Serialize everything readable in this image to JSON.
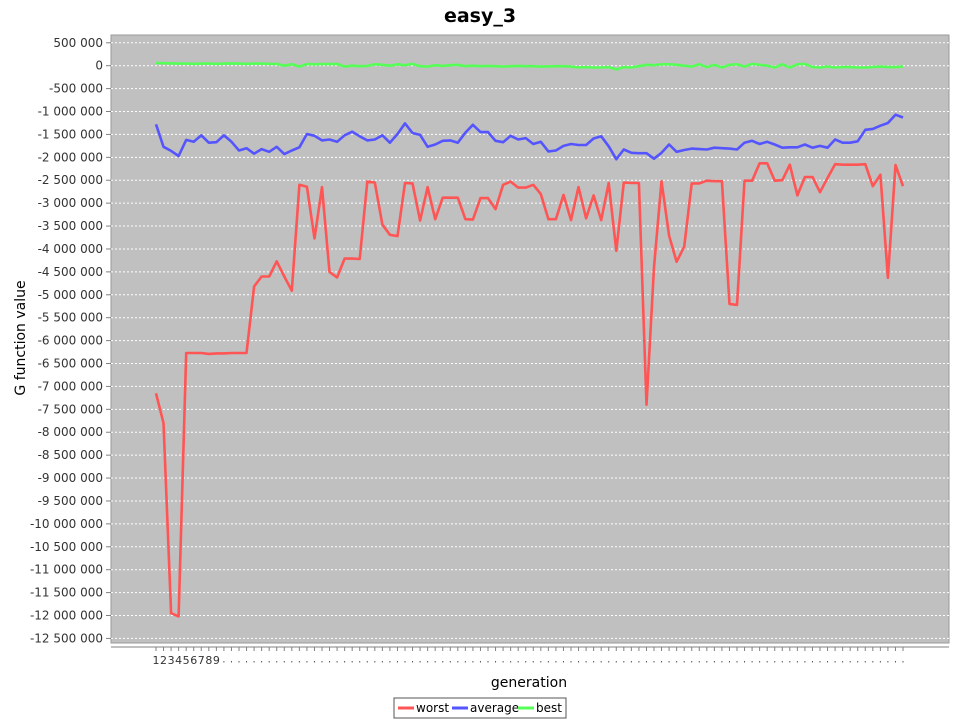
{
  "chart_data": {
    "type": "line",
    "title": "easy_3",
    "xlabel": "generation",
    "ylabel": "G function value",
    "ylim": [
      -12600000,
      670000
    ],
    "yticks": [
      500000,
      0,
      -500000,
      -1000000,
      -1500000,
      -2000000,
      -2500000,
      -3000000,
      -3500000,
      -4000000,
      -4500000,
      -5000000,
      -5500000,
      -6000000,
      -6500000,
      -7000000,
      -7500000,
      -8000000,
      -8500000,
      -9000000,
      -9500000,
      -10000000,
      -10500000,
      -11000000,
      -11500000,
      -12000000,
      -12500000
    ],
    "ytick_labels": [
      "500 000",
      "0",
      "-500 000",
      "-1 000 000",
      "-1 500 000",
      "-2 000 000",
      "-2 500 000",
      "-3 000 000",
      "-3 500 000",
      "-4 000 000",
      "-4 500 000",
      "-5 000 000",
      "-5 500 000",
      "-6 000 000",
      "-6 500 000",
      "-7 000 000",
      "-7 500 000",
      "-8 000 000",
      "-8 500 000",
      "-9 000 000",
      "-9 500 000",
      "-10 000 000",
      "-10 500 000",
      "-11 000 000",
      "-11 500 000",
      "-12 000 000",
      "-12 500 000"
    ],
    "x_count": 100,
    "x_tick_labels_visible": [
      "1",
      "2",
      "3",
      "4",
      "5",
      "6",
      "7",
      "8",
      "9"
    ],
    "grid": true,
    "legend_position": "bottom-center",
    "series": [
      {
        "name": "worst",
        "color": "#ff5555",
        "values": [
          -7150000,
          -7800000,
          -11950000,
          -12020000,
          -6270000,
          -6270000,
          -6270000,
          -6290000,
          -6280000,
          -6280000,
          -6270000,
          -6270000,
          -6270000,
          -4820000,
          -4600000,
          -4600000,
          -4270000,
          -4600000,
          -4910000,
          -2600000,
          -2640000,
          -3770000,
          -2650000,
          -4500000,
          -4620000,
          -4210000,
          -4210000,
          -4220000,
          -2530000,
          -2550000,
          -3470000,
          -3690000,
          -3720000,
          -2560000,
          -2570000,
          -3380000,
          -2650000,
          -3350000,
          -2880000,
          -2880000,
          -2880000,
          -3350000,
          -3360000,
          -2890000,
          -2890000,
          -3130000,
          -2600000,
          -2530000,
          -2660000,
          -2660000,
          -2600000,
          -2800000,
          -3350000,
          -3350000,
          -2820000,
          -3370000,
          -2650000,
          -3330000,
          -2830000,
          -3370000,
          -2560000,
          -4040000,
          -2550000,
          -2560000,
          -2560000,
          -7400000,
          -4400000,
          -2520000,
          -3710000,
          -4280000,
          -3950000,
          -2570000,
          -2570000,
          -2510000,
          -2520000,
          -2520000,
          -5200000,
          -5220000,
          -2510000,
          -2510000,
          -2130000,
          -2130000,
          -2510000,
          -2500000,
          -2160000,
          -2830000,
          -2430000,
          -2430000,
          -2760000,
          -2450000,
          -2150000,
          -2160000,
          -2160000,
          -2160000,
          -2150000,
          -2630000,
          -2380000,
          -4630000,
          -2170000,
          -2630000
        ]
      },
      {
        "name": "average",
        "color": "#5555ff",
        "values": [
          -1280000,
          -1770000,
          -1860000,
          -1970000,
          -1620000,
          -1660000,
          -1520000,
          -1680000,
          -1670000,
          -1520000,
          -1660000,
          -1850000,
          -1800000,
          -1920000,
          -1820000,
          -1880000,
          -1770000,
          -1930000,
          -1850000,
          -1780000,
          -1490000,
          -1530000,
          -1630000,
          -1610000,
          -1660000,
          -1520000,
          -1440000,
          -1540000,
          -1630000,
          -1610000,
          -1520000,
          -1680000,
          -1490000,
          -1260000,
          -1470000,
          -1510000,
          -1770000,
          -1720000,
          -1640000,
          -1630000,
          -1680000,
          -1460000,
          -1290000,
          -1450000,
          -1450000,
          -1640000,
          -1670000,
          -1530000,
          -1610000,
          -1580000,
          -1710000,
          -1660000,
          -1870000,
          -1850000,
          -1750000,
          -1710000,
          -1730000,
          -1730000,
          -1590000,
          -1540000,
          -1760000,
          -2040000,
          -1830000,
          -1900000,
          -1910000,
          -1910000,
          -2030000,
          -1900000,
          -1720000,
          -1880000,
          -1840000,
          -1810000,
          -1820000,
          -1830000,
          -1790000,
          -1800000,
          -1810000,
          -1830000,
          -1680000,
          -1640000,
          -1710000,
          -1660000,
          -1720000,
          -1790000,
          -1780000,
          -1780000,
          -1720000,
          -1790000,
          -1750000,
          -1790000,
          -1610000,
          -1680000,
          -1680000,
          -1650000,
          -1400000,
          -1380000,
          -1310000,
          -1250000,
          -1070000,
          -1130000
        ]
      },
      {
        "name": "best",
        "color": "#55ff55",
        "values": [
          60000,
          55000,
          50000,
          45000,
          45000,
          40000,
          45000,
          45000,
          40000,
          45000,
          50000,
          45000,
          40000,
          45000,
          45000,
          40000,
          40000,
          0,
          30000,
          -20000,
          35000,
          30000,
          35000,
          35000,
          40000,
          -20000,
          0,
          -10000,
          -5000,
          30000,
          20000,
          0,
          30000,
          10000,
          40000,
          -10000,
          -20000,
          10000,
          -5000,
          10000,
          20000,
          -10000,
          0,
          -10000,
          -5000,
          -10000,
          -20000,
          -10000,
          -5000,
          -10000,
          -10000,
          -20000,
          -15000,
          -10000,
          -10000,
          -20000,
          -40000,
          -30000,
          -40000,
          -40000,
          -30000,
          -80000,
          -30000,
          -40000,
          -10000,
          20000,
          10000,
          30000,
          30000,
          20000,
          0,
          -20000,
          30000,
          -30000,
          20000,
          -40000,
          20000,
          30000,
          -20000,
          40000,
          20000,
          0,
          -40000,
          30000,
          -40000,
          30000,
          40000,
          -30000,
          -40000,
          -20000,
          -40000,
          -30000,
          -30000,
          -40000,
          -40000,
          -30000,
          -20000,
          -30000,
          -30000,
          -20000
        ]
      }
    ]
  }
}
